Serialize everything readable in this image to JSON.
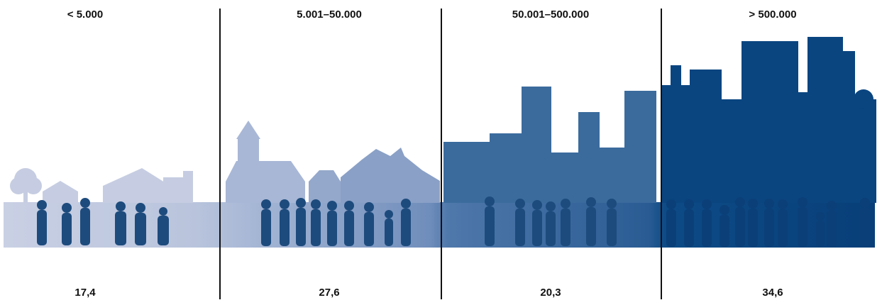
{
  "categories": [
    {
      "label": "< 5.000",
      "value": "17,4"
    },
    {
      "label": "5.001–50.000",
      "value": "27,6"
    },
    {
      "label": "50.001–500.000",
      "value": "20,3"
    },
    {
      "label": "> 500.000",
      "value": "34,6"
    }
  ],
  "colors": {
    "village": "#c6cde2",
    "town": "#7f97bd",
    "city": "#3a6a9c",
    "metropolis": "#063f7a",
    "people": "#1c4a7c"
  },
  "icons": [
    "tree-icon",
    "house-icon",
    "church-icon",
    "skyscraper-icon",
    "person-icon"
  ]
}
